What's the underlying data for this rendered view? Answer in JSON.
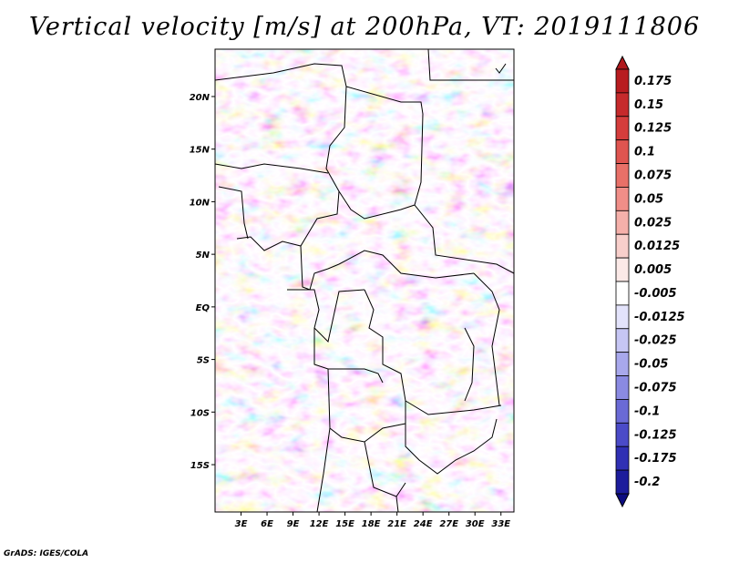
{
  "title": "Vertical velocity [m/s] at 200hPa, VT: 2019111806",
  "credit": "GrADS: IGES/COLA",
  "map": {
    "lat_labels": [
      "20N",
      "15N",
      "10N",
      "5N",
      "EQ",
      "5S",
      "10S",
      "15S"
    ],
    "lon_labels": [
      "3E",
      "6E",
      "9E",
      "12E",
      "15E",
      "18E",
      "21E",
      "24E",
      "27E",
      "30E",
      "33E"
    ],
    "lat_range": [
      -19.5,
      24.5
    ],
    "lon_range": [
      0.0,
      34.5
    ]
  },
  "colorbar": {
    "labels": [
      "0.175",
      "0.15",
      "0.125",
      "0.1",
      "0.075",
      "0.05",
      "0.025",
      "0.0125",
      "0.005",
      "-0.005",
      "-0.0125",
      "-0.025",
      "-0.05",
      "-0.075",
      "-0.1",
      "-0.125",
      "-0.175",
      "-0.2"
    ],
    "colors": [
      "#b0181c",
      "#b81c20",
      "#c62a2c",
      "#d53d3c",
      "#df5550",
      "#e87068",
      "#f08e88",
      "#f5b0aa",
      "#f8cfcb",
      "#fbe9e7",
      "#ffffff",
      "#e3e3fb",
      "#c6c6f4",
      "#a8a8ec",
      "#8a8ae2",
      "#6a6ad6",
      "#4b4bc8",
      "#3030b4",
      "#1c1c9c",
      "#0c0c80"
    ]
  }
}
